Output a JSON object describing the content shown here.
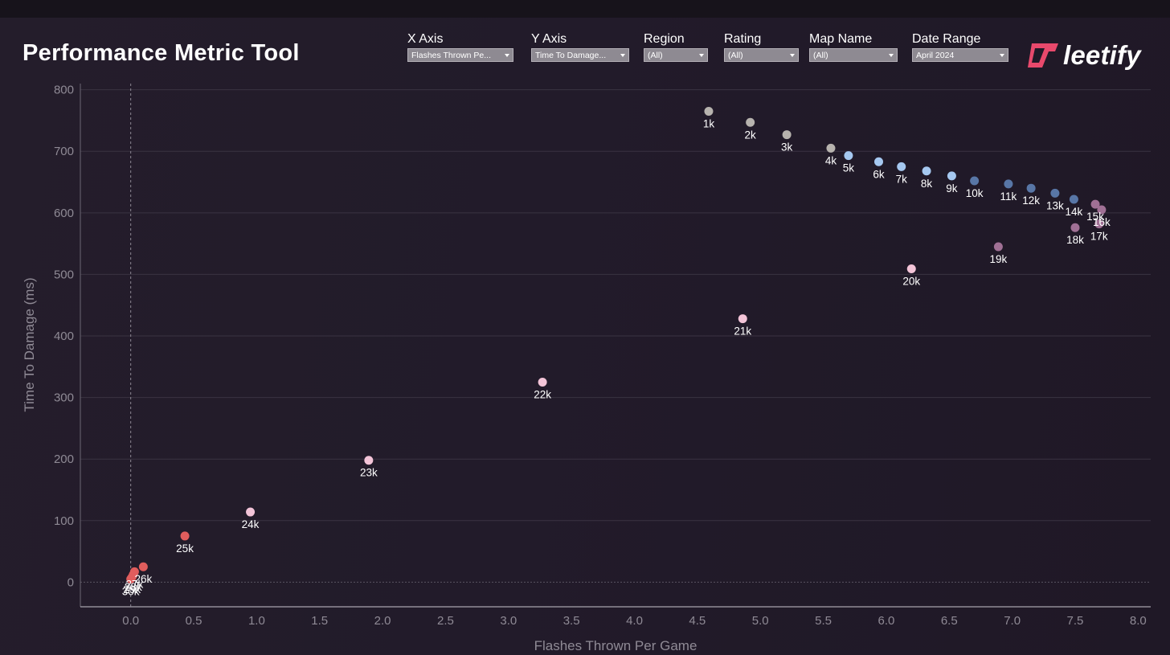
{
  "header": {
    "title": "Performance Metric Tool"
  },
  "filters": [
    {
      "label": "X Axis",
      "value": "Flashes Thrown Pe..."
    },
    {
      "label": "Y Axis",
      "value": "Time To Damage..."
    },
    {
      "label": "Region",
      "value": "(All)"
    },
    {
      "label": "Rating",
      "value": "(All)"
    },
    {
      "label": "Map Name",
      "value": "(All)"
    },
    {
      "label": "Date Range",
      "value": "April 2024"
    }
  ],
  "logo": {
    "text": "leetify",
    "icon": "leetify-logo-icon",
    "color": "#e8496c"
  },
  "chart_data": {
    "type": "scatter",
    "xlabel": "Flashes Thrown Per Game",
    "ylabel": "Time To Damage (ms)",
    "xlim": [
      -0.4,
      8.1
    ],
    "ylim": [
      -40,
      810
    ],
    "x_ticks": [
      "0.0",
      "0.5",
      "1.0",
      "1.5",
      "2.0",
      "2.5",
      "3.0",
      "3.5",
      "4.0",
      "4.5",
      "5.0",
      "5.5",
      "6.0",
      "6.5",
      "7.0",
      "7.5",
      "8.0"
    ],
    "y_ticks": [
      "0",
      "100",
      "200",
      "300",
      "400",
      "500",
      "600",
      "700",
      "800"
    ],
    "grid": "horizontal",
    "reference_line_x": 0,
    "points": [
      {
        "label": "1k",
        "x": 4.59,
        "y": 765,
        "color": "#b7b3ae"
      },
      {
        "label": "2k",
        "x": 4.92,
        "y": 747,
        "color": "#b7b3ae"
      },
      {
        "label": "3k",
        "x": 5.21,
        "y": 727,
        "color": "#b7b3ae"
      },
      {
        "label": "4k",
        "x": 5.56,
        "y": 705,
        "color": "#b7b3ae"
      },
      {
        "label": "5k",
        "x": 5.7,
        "y": 693,
        "color": "#a5c8f0"
      },
      {
        "label": "6k",
        "x": 5.94,
        "y": 683,
        "color": "#a5c8f0"
      },
      {
        "label": "7k",
        "x": 6.12,
        "y": 675,
        "color": "#a5c8f0"
      },
      {
        "label": "8k",
        "x": 6.32,
        "y": 668,
        "color": "#a5c8f0"
      },
      {
        "label": "9k",
        "x": 6.52,
        "y": 660,
        "color": "#a5c8f0"
      },
      {
        "label": "10k",
        "x": 6.7,
        "y": 652,
        "color": "#5876a6"
      },
      {
        "label": "11k",
        "x": 6.97,
        "y": 647,
        "color": "#5876a6"
      },
      {
        "label": "12k",
        "x": 7.15,
        "y": 640,
        "color": "#5876a6"
      },
      {
        "label": "13k",
        "x": 7.34,
        "y": 632,
        "color": "#5876a6"
      },
      {
        "label": "14k",
        "x": 7.49,
        "y": 622,
        "color": "#5876a6"
      },
      {
        "label": "15k",
        "x": 7.66,
        "y": 614,
        "color": "#a07095"
      },
      {
        "label": "16k",
        "x": 7.71,
        "y": 605,
        "color": "#a07095"
      },
      {
        "label": "17k",
        "x": 7.69,
        "y": 582,
        "color": "#a07095"
      },
      {
        "label": "18k",
        "x": 7.5,
        "y": 576,
        "color": "#a07095"
      },
      {
        "label": "19k",
        "x": 6.89,
        "y": 545,
        "color": "#a07095"
      },
      {
        "label": "20k",
        "x": 6.2,
        "y": 509,
        "color": "#f3c4d8"
      },
      {
        "label": "21k",
        "x": 4.86,
        "y": 428,
        "color": "#f3c4d8"
      },
      {
        "label": "22k",
        "x": 3.27,
        "y": 325,
        "color": "#f3c4d8"
      },
      {
        "label": "23k",
        "x": 1.89,
        "y": 198,
        "color": "#f3c4d8"
      },
      {
        "label": "24k",
        "x": 0.95,
        "y": 114,
        "color": "#f3c4d8"
      },
      {
        "label": "25k",
        "x": 0.43,
        "y": 75,
        "color": "#e05d5d"
      },
      {
        "label": "26k",
        "x": 0.1,
        "y": 25,
        "color": "#e05d5d"
      },
      {
        "label": "27k",
        "x": 0.03,
        "y": 17,
        "color": "#e05d5d"
      },
      {
        "label": "28k",
        "x": 0.02,
        "y": 12,
        "color": "#e05d5d"
      },
      {
        "label": "29k",
        "x": 0.01,
        "y": 8,
        "color": "#e05d5d"
      },
      {
        "label": "30k",
        "x": 0.0,
        "y": 5,
        "color": "#e05d5d"
      }
    ]
  }
}
